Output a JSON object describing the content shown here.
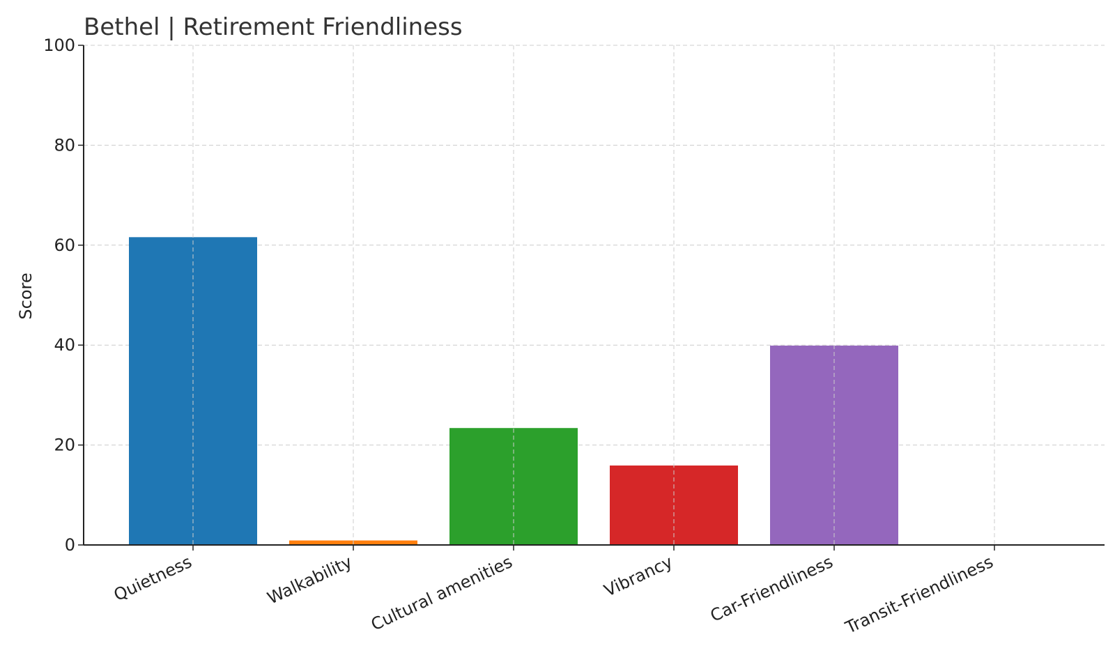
{
  "chart_data": {
    "type": "bar",
    "title": "Bethel | Retirement Friendliness",
    "xlabel": "",
    "ylabel": "Score",
    "ylim": [
      0,
      100
    ],
    "yticks": [
      "0",
      "20",
      "40",
      "60",
      "80",
      "100"
    ],
    "grid": true,
    "categories": [
      "Quietness",
      "Walkability",
      "Cultural amenities",
      "Vibrancy",
      "Car-Friendliness",
      "Transit-Friendliness"
    ],
    "values": [
      61.6,
      0.9,
      23.4,
      15.9,
      39.9,
      0
    ],
    "colors": [
      "#1f77b4",
      "#ff7f0e",
      "#2ca02c",
      "#d62728",
      "#9467bd",
      "#8c564b"
    ]
  }
}
